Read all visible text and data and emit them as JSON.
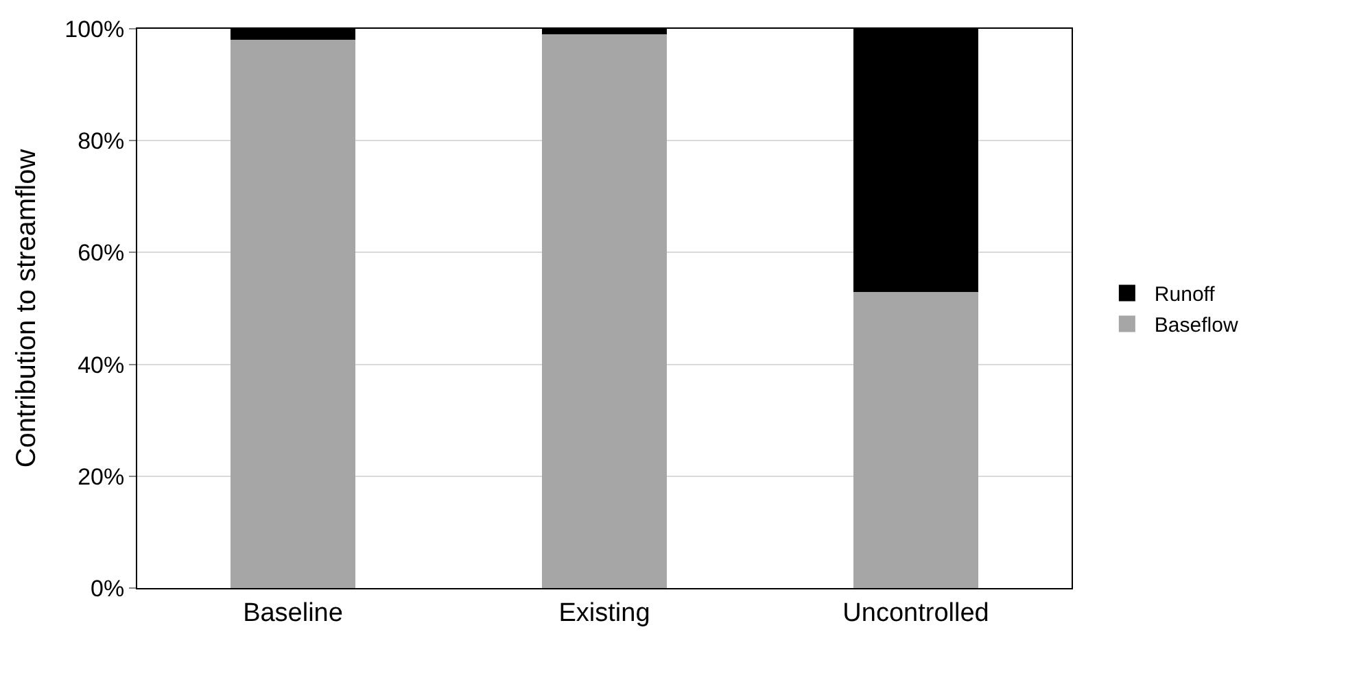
{
  "chart_data": {
    "type": "bar",
    "stacked": true,
    "ylabel": "Contribution to streamflow",
    "categories": [
      "Baseline",
      "Existing",
      "Uncontrolled"
    ],
    "series": [
      {
        "name": "Baseflow",
        "color": "#a6a6a6",
        "values": [
          98,
          99,
          53
        ]
      },
      {
        "name": "Runoff",
        "color": "#000000",
        "values": [
          2,
          1,
          47
        ]
      }
    ],
    "ylim": [
      0,
      100
    ],
    "yticks": [
      {
        "value": 0,
        "label": "0%"
      },
      {
        "value": 20,
        "label": "20%"
      },
      {
        "value": 40,
        "label": "40%"
      },
      {
        "value": 60,
        "label": "60%"
      },
      {
        "value": 80,
        "label": "80%"
      },
      {
        "value": 100,
        "label": "100%"
      }
    ],
    "grid": "y",
    "legend": "right"
  }
}
